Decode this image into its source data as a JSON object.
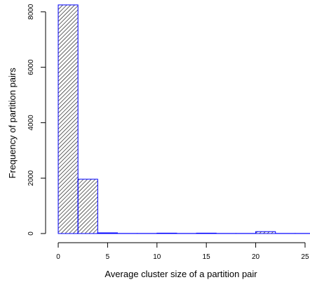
{
  "chart_data": {
    "type": "histogram",
    "x_label": "Average cluster size of a partition pair",
    "y_label": "Frequency of partition pairs",
    "bins": [
      0,
      2,
      4,
      6,
      8,
      10,
      12,
      14,
      16,
      18,
      20,
      22,
      24,
      26
    ],
    "values": [
      8250,
      1960,
      25,
      5,
      5,
      15,
      5,
      15,
      5,
      5,
      70,
      5,
      5
    ],
    "color": "#0000ff",
    "hatch_color": "#000000",
    "xlim": [
      -1.28,
      25.5
    ],
    "ylim": [
      -330,
      8300
    ],
    "xticks": [
      0,
      5,
      10,
      15,
      20,
      25
    ],
    "yticks": [
      0,
      2000,
      4000,
      6000,
      8000
    ]
  }
}
